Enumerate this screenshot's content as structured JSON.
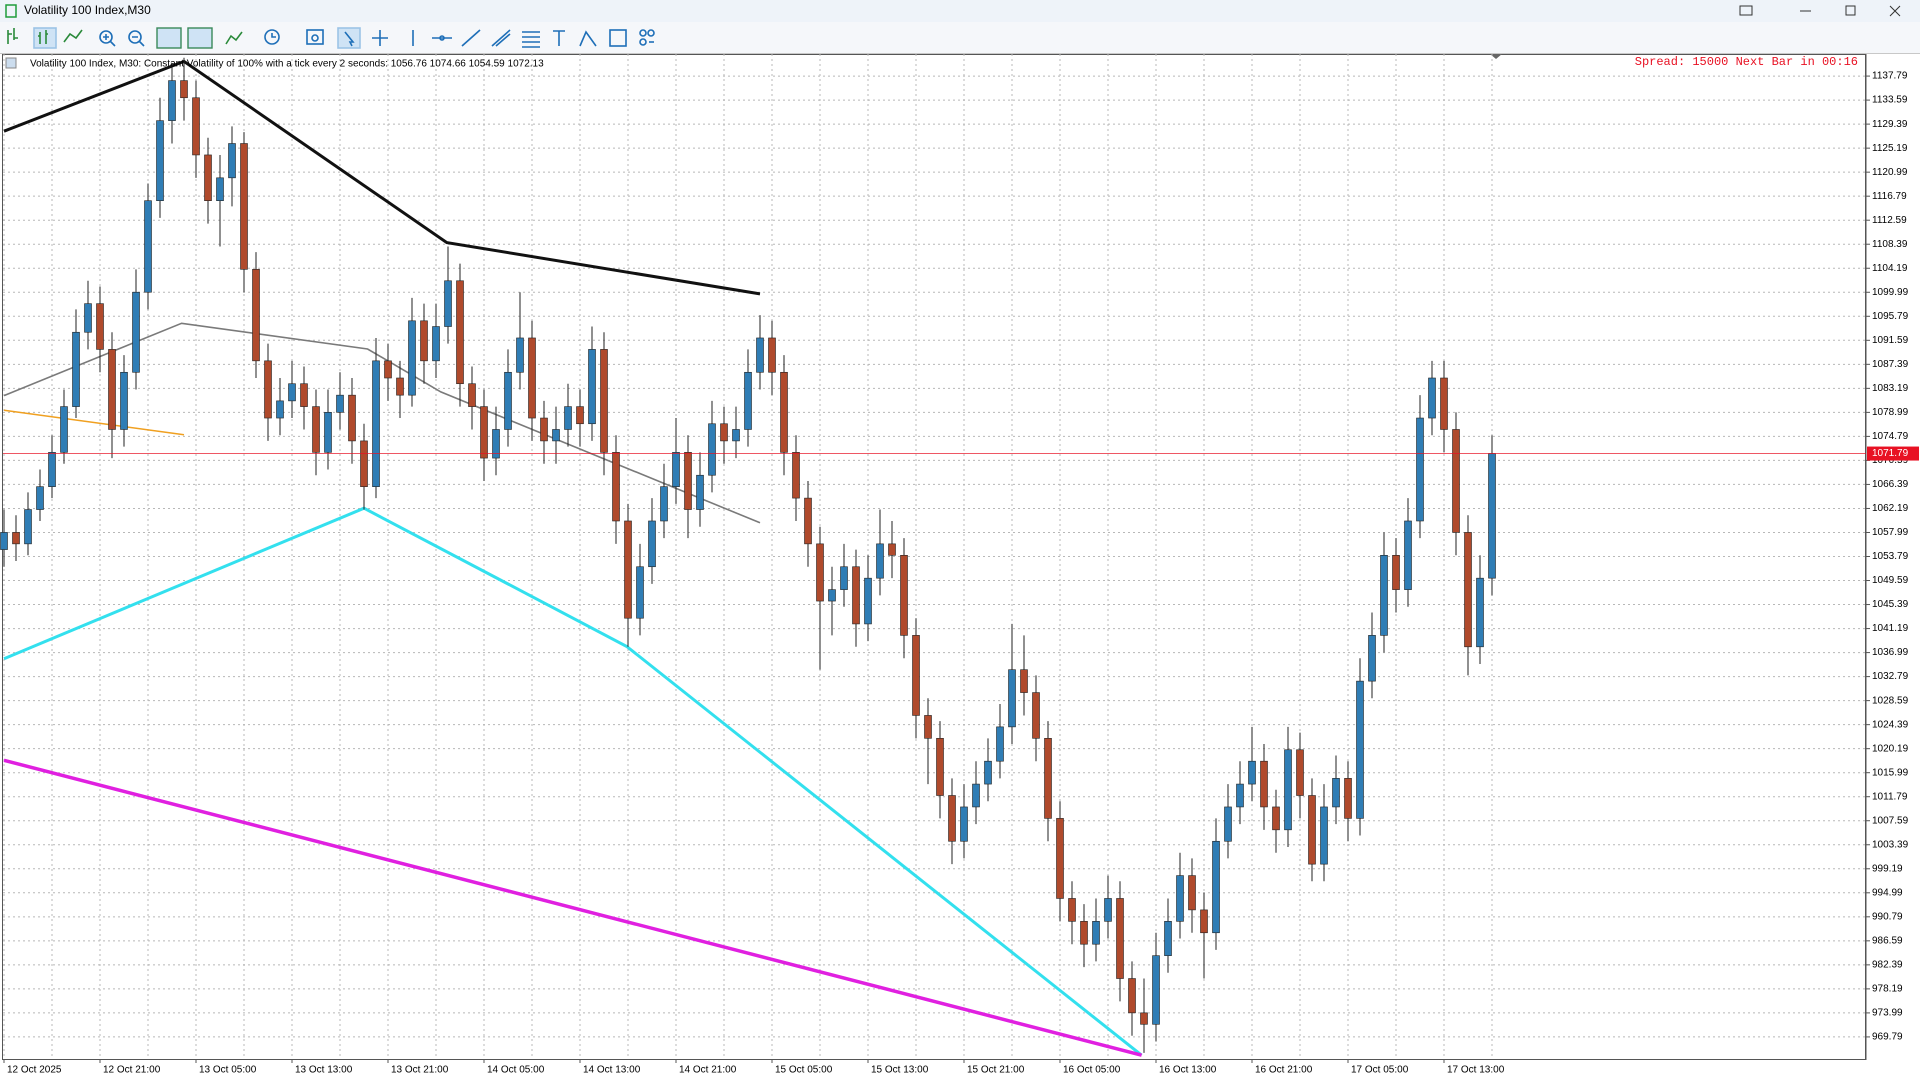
{
  "window": {
    "title": "Volatility 100 Index,M30"
  },
  "chart_data": {
    "type": "candlestick",
    "info": "Volatility 100 Index, M30:  Constant Volatility of 100% with a tick every 2 seconds: 1056.76 1074.66 1054.59 1072.13",
    "status": "Spread: 15000 Next Bar in 00:16",
    "categories": [
      "12 Oct 2025",
      null,
      null,
      null,
      null,
      null,
      null,
      null,
      "12 Oct 21:00",
      null,
      null,
      null,
      null,
      null,
      null,
      null,
      "13 Oct 05:00",
      null,
      null,
      null,
      null,
      null,
      null,
      null,
      "13 Oct 13:00",
      null,
      null,
      null,
      null,
      null,
      null,
      null,
      "13 Oct 21:00",
      null,
      null,
      null,
      null,
      null,
      null,
      null,
      "14 Oct 05:00",
      null,
      null,
      null,
      null,
      null,
      null,
      null,
      "14 Oct 13:00",
      null,
      null,
      null,
      null,
      null,
      null,
      null,
      "14 Oct 21:00",
      null,
      null,
      null,
      null,
      null,
      null,
      null,
      "15 Oct 05:00",
      null,
      null,
      null,
      null,
      null,
      null,
      null,
      "15 Oct 13:00",
      null,
      null,
      null,
      null,
      null,
      null,
      null,
      "15 Oct 21:00",
      null,
      null,
      null,
      null,
      null,
      null,
      null,
      "16 Oct 05:00",
      null,
      null,
      null,
      null,
      null,
      null,
      null,
      "16 Oct 13:00",
      null,
      null,
      null,
      null,
      null,
      null,
      null,
      "16 Oct 21:00",
      null,
      null,
      null,
      null,
      null,
      null,
      null,
      "17 Oct 05:00",
      null,
      null,
      null,
      null,
      null,
      null,
      null,
      "17 Oct 13:00",
      null,
      null,
      null,
      null
    ],
    "open": [
      1055,
      1058,
      1056,
      1062,
      1066,
      1072,
      1080,
      1093,
      1098,
      1090,
      1076,
      1086,
      1100,
      1116,
      1130,
      1137,
      1134,
      1124,
      1116,
      1120,
      1126,
      1104,
      1088,
      1078,
      1081,
      1084,
      1080,
      1072,
      1079,
      1082,
      1074,
      1066,
      1088,
      1085,
      1082,
      1095,
      1088,
      1094,
      1102,
      1084,
      1080,
      1071,
      1076,
      1086,
      1092,
      1078,
      1074,
      1076,
      1080,
      1077,
      1090,
      1072,
      1060,
      1043,
      1052,
      1060,
      1066,
      1072,
      1062,
      1068,
      1077,
      1074,
      1076,
      1086,
      1092,
      1086,
      1072,
      1064,
      1056,
      1046,
      1048,
      1052,
      1042,
      1050,
      1056,
      1054,
      1040,
      1026,
      1022,
      1012,
      1004,
      1010,
      1014,
      1018,
      1024,
      1034,
      1030,
      1022,
      1008,
      994,
      990,
      986,
      990,
      994,
      980,
      974,
      972,
      984,
      990,
      998,
      992,
      988,
      1004,
      1010,
      1014,
      1018,
      1010,
      1006,
      1020,
      1012,
      1000,
      1010,
      1015,
      1008,
      1032,
      1040,
      1054,
      1048,
      1060,
      1078,
      1085,
      1076,
      1058,
      1038,
      1050
    ],
    "high": [
      1062,
      1061,
      1065,
      1069,
      1075,
      1083,
      1097,
      1102,
      1101,
      1093,
      1089,
      1104,
      1119,
      1134,
      1140,
      1141,
      1137,
      1127,
      1124,
      1129,
      1128,
      1107,
      1091,
      1085,
      1088,
      1087,
      1083,
      1083,
      1086,
      1085,
      1077,
      1092,
      1091,
      1088,
      1099,
      1098,
      1098,
      1108,
      1105,
      1087,
      1083,
      1080,
      1090,
      1100,
      1095,
      1081,
      1080,
      1084,
      1083,
      1094,
      1093,
      1075,
      1063,
      1056,
      1064,
      1070,
      1078,
      1075,
      1072,
      1081,
      1080,
      1080,
      1090,
      1096,
      1095,
      1089,
      1075,
      1067,
      1059,
      1052,
      1056,
      1055,
      1054,
      1062,
      1060,
      1057,
      1043,
      1029,
      1025,
      1015,
      1014,
      1018,
      1022,
      1028,
      1042,
      1040,
      1033,
      1025,
      1011,
      997,
      993,
      994,
      998,
      997,
      983,
      980,
      988,
      994,
      1002,
      1001,
      995,
      1008,
      1014,
      1018,
      1024,
      1021,
      1013,
      1024,
      1023,
      1015,
      1014,
      1019,
      1018,
      1036,
      1044,
      1058,
      1057,
      1064,
      1082,
      1088,
      1088,
      1079,
      1061,
      1054,
      1075
    ],
    "low": [
      1052,
      1053,
      1054,
      1060,
      1064,
      1070,
      1078,
      1090,
      1086,
      1071,
      1073,
      1083,
      1097,
      1113,
      1126,
      1130,
      1120,
      1112,
      1108,
      1115,
      1100,
      1085,
      1074,
      1075,
      1078,
      1076,
      1068,
      1069,
      1076,
      1070,
      1062,
      1064,
      1081,
      1078,
      1080,
      1084,
      1085,
      1091,
      1080,
      1076,
      1067,
      1068,
      1073,
      1083,
      1074,
      1070,
      1070,
      1073,
      1073,
      1074,
      1068,
      1056,
      1038,
      1040,
      1049,
      1057,
      1063,
      1057,
      1059,
      1065,
      1070,
      1071,
      1073,
      1083,
      1082,
      1068,
      1060,
      1052,
      1034,
      1040,
      1045,
      1038,
      1039,
      1047,
      1050,
      1036,
      1022,
      1014,
      1008,
      1000,
      1001,
      1007,
      1011,
      1015,
      1021,
      1026,
      1018,
      1004,
      990,
      986,
      982,
      983,
      987,
      976,
      970,
      967,
      969,
      981,
      987,
      988,
      980,
      985,
      1001,
      1007,
      1011,
      1006,
      1002,
      1003,
      1008,
      997,
      997,
      1007,
      1004,
      1005,
      1029,
      1037,
      1044,
      1045,
      1057,
      1075,
      1072,
      1054,
      1033,
      1035,
      1047
    ],
    "close": [
      1058,
      1056,
      1062,
      1066,
      1072,
      1080,
      1093,
      1098,
      1090,
      1076,
      1086,
      1100,
      1116,
      1130,
      1137,
      1134,
      1124,
      1116,
      1120,
      1126,
      1104,
      1088,
      1078,
      1081,
      1084,
      1080,
      1072,
      1079,
      1082,
      1074,
      1066,
      1088,
      1085,
      1082,
      1095,
      1088,
      1094,
      1102,
      1084,
      1080,
      1071,
      1076,
      1086,
      1092,
      1078,
      1074,
      1076,
      1080,
      1077,
      1090,
      1072,
      1060,
      1043,
      1052,
      1060,
      1066,
      1072,
      1062,
      1068,
      1077,
      1074,
      1076,
      1086,
      1092,
      1086,
      1072,
      1064,
      1056,
      1046,
      1048,
      1052,
      1042,
      1050,
      1056,
      1054,
      1040,
      1026,
      1022,
      1012,
      1004,
      1010,
      1014,
      1018,
      1024,
      1034,
      1030,
      1022,
      1008,
      994,
      990,
      986,
      990,
      994,
      980,
      974,
      972,
      984,
      990,
      998,
      992,
      988,
      1004,
      1010,
      1014,
      1018,
      1010,
      1006,
      1020,
      1012,
      1000,
      1010,
      1015,
      1008,
      1032,
      1040,
      1054,
      1048,
      1060,
      1078,
      1085,
      1076,
      1058,
      1038,
      1050,
      1071.79
    ],
    "up_color": "#2f7db5",
    "down_color": "#b04a2c",
    "ylim": [
      965.93,
      1141.65
    ],
    "yticks": [
      1137.79,
      1133.59,
      1129.39,
      1125.19,
      1120.99,
      1116.79,
      1112.59,
      1108.39,
      1104.19,
      1099.99,
      1095.79,
      1091.59,
      1087.39,
      1083.19,
      1078.99,
      1074.79,
      1070.59,
      1066.39,
      1062.19,
      1057.99,
      1053.79,
      1049.59,
      1045.39,
      1041.19,
      1036.99,
      1032.79,
      1028.59,
      1024.39,
      1020.19,
      1015.99,
      1011.79,
      1007.59,
      1003.39,
      999.19,
      994.99,
      990.79,
      986.59,
      982.39,
      978.19,
      973.99,
      969.79
    ],
    "grid": true,
    "last_price": 1071.79,
    "last_price_color": "#e81123",
    "overlays": [
      {
        "color": "#111111",
        "width": 3,
        "x": [
          0,
          15,
          36.9,
          63
        ],
        "values": [
          1128.16,
          1140.36,
          1108.68,
          1099.7
        ]
      },
      {
        "color": "#7a7a7a",
        "width": 1.6,
        "x": [
          0,
          14.8,
          30.3,
          36.4,
          63
        ],
        "values": [
          1081.93,
          1094.56,
          1090.07,
          1082.57,
          1059.68
        ]
      },
      {
        "color": "#f0a020",
        "width": 1.5,
        "x": [
          0,
          15
        ],
        "values": [
          1079.37,
          1075.07
        ]
      },
      {
        "color": "#33e0ee",
        "width": 3,
        "x": [
          0,
          30,
          51.9,
          94.8
        ],
        "values": [
          1035.92,
          1062.24,
          1038.06,
          966.6
        ]
      },
      {
        "color": "#e020e0",
        "width": 3.5,
        "x": [
          0,
          94.8
        ],
        "values": [
          1018.16,
          966.6
        ]
      }
    ]
  }
}
